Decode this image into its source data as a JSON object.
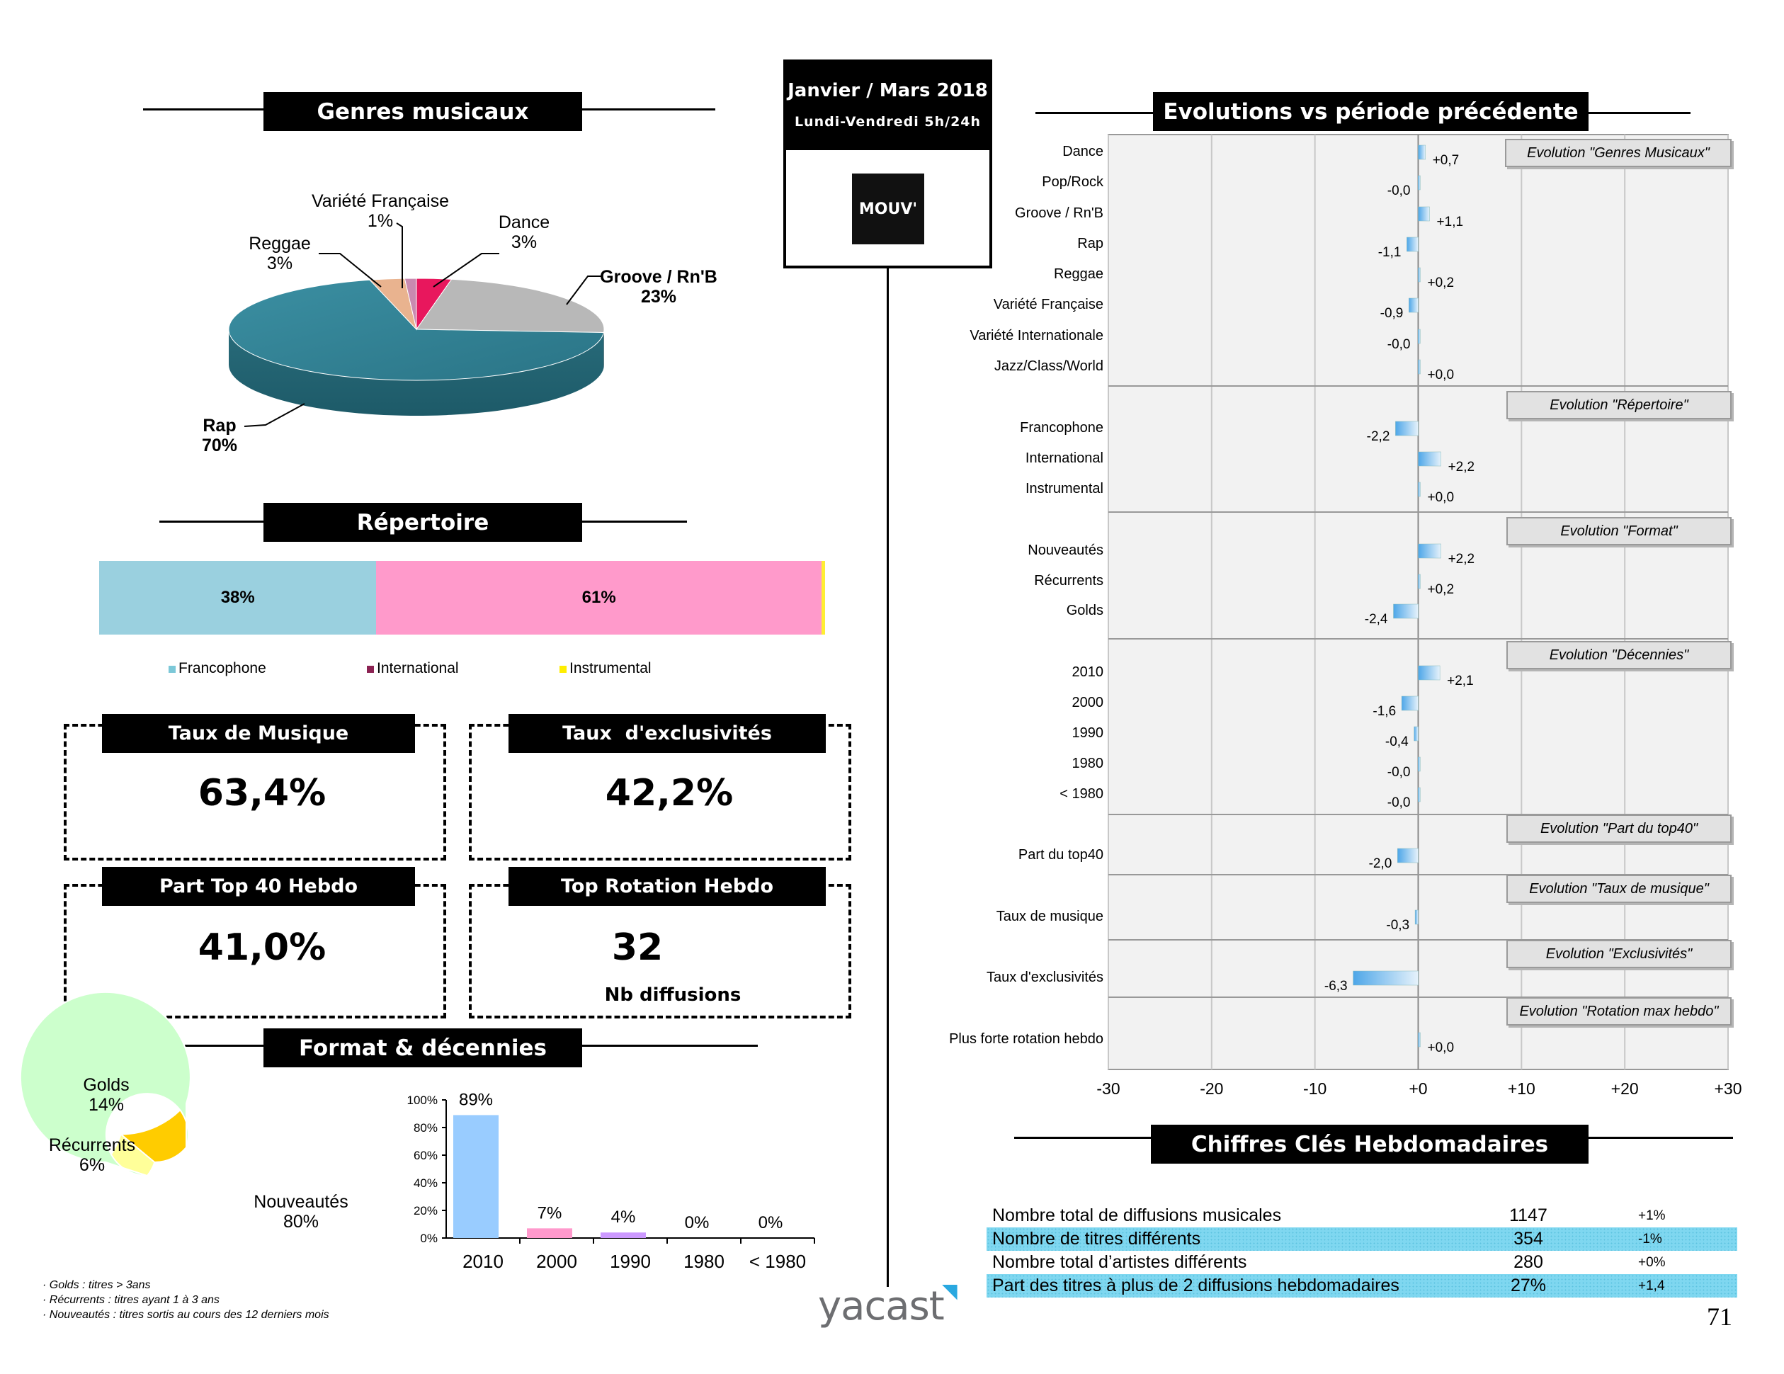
{
  "badge": {
    "period": "Janvier / Mars 2018",
    "schedule": "Lundi-Vendredi 5h/24h",
    "logo_text": "MOUV'"
  },
  "genres": {
    "title": "Genres musicaux",
    "labels": [
      {
        "name": "Variété Française",
        "pct": "1%"
      },
      {
        "name": "Reggae",
        "pct": "3%"
      },
      {
        "name": "Dance",
        "pct": "3%"
      },
      {
        "name": "Groove / Rn'B",
        "pct": "23%"
      },
      {
        "name": "Rap",
        "pct": "70%"
      }
    ]
  },
  "repertoire": {
    "title": "Répertoire",
    "bar_labels": [
      "38%",
      "61%"
    ],
    "legend": [
      "Francophone",
      "International",
      "Instrumental"
    ]
  },
  "kpis": [
    {
      "title": "Taux de Musique",
      "value": "63,4%"
    },
    {
      "title": "Taux  d'exclusivités",
      "value": "42,2%"
    },
    {
      "title": "Part Top 40 Hebdo",
      "value": "41,0%"
    },
    {
      "title": "Top Rotation Hebdo",
      "value": "32",
      "sub": "Nb diffusions"
    }
  ],
  "format": {
    "title": "Format & décennies",
    "donut_labels": [
      {
        "name": "Golds",
        "pct": "14%"
      },
      {
        "name": "Récurrents",
        "pct": "6%"
      },
      {
        "name": "Nouveautés",
        "pct": "80%"
      }
    ],
    "notes": [
      "· Golds : titres > 3ans",
      "· Récurrents : titres ayant  1 à 3 ans",
      "· Nouveautés  : titres sortis au cours des 12 derniers mois"
    ]
  },
  "evolutions": {
    "title": "Evolutions vs période précédente",
    "section_labels": [
      "Evolution \"Genres  Musicaux\"",
      "Evolution \"Répertoire\"",
      "Evolution \"Format\"",
      "Evolution \"Décennies\"",
      "Evolution \"Part du top40\"",
      "Evolution \"Taux  de musique\"",
      "Evolution \"Exclusivités\"",
      "Evolution \"Rotation max hebdo\""
    ]
  },
  "key_figures": {
    "title": "Chiffres Clés Hebdomadaires",
    "rows": [
      {
        "label": "Nombre total de diffusions musicales",
        "value": "1147",
        "change": "+1%"
      },
      {
        "label": "Nombre de titres différents",
        "value": "354",
        "change": "-1%"
      },
      {
        "label": "Nombre total d’artistes différents",
        "value": "280",
        "change": "+0%"
      },
      {
        "label": "Part des titres à plus de 2 diffusions hebdomadaires",
        "value": "27%",
        "change": "+1,4"
      }
    ]
  },
  "footer": {
    "brand": "yacast",
    "page_number": "71"
  },
  "chart_data": [
    {
      "type": "pie",
      "title": "Genres musicaux",
      "categories": [
        "Rap",
        "Groove / Rn'B",
        "Dance",
        "Variété Française",
        "Reggae"
      ],
      "values": [
        70,
        23,
        3,
        1,
        3
      ],
      "colors": [
        "#2e7c8e",
        "#b8b8b8",
        "#e8175d",
        "#c98ab0",
        "#e9b38f"
      ]
    },
    {
      "type": "bar",
      "title": "Répertoire",
      "orientation": "horizontal-stacked",
      "categories": [
        "Francophone",
        "International",
        "Instrumental"
      ],
      "values": [
        38,
        61,
        0.5
      ],
      "colors": [
        "#9ad0df",
        "#ff9acb",
        "#ffee33"
      ],
      "legend_colors": [
        "#7cc8d8",
        "#8b2252",
        "#ffee00"
      ]
    },
    {
      "type": "pie",
      "subtype": "donut",
      "title": "Format",
      "categories": [
        "Golds",
        "Récurrents",
        "Nouveautés"
      ],
      "values": [
        14,
        6,
        80
      ],
      "colors": [
        "#ffcc00",
        "#ffff99",
        "#ccffcc"
      ]
    },
    {
      "type": "bar",
      "title": "Décennies",
      "categories": [
        "2010",
        "2000",
        "1990",
        "1980",
        "< 1980"
      ],
      "values": [
        89,
        7,
        4,
        0,
        0
      ],
      "labels": [
        "89%",
        "7%",
        "4%",
        "0%",
        "0%"
      ],
      "colors": [
        "#99ccff",
        "#ff99cc",
        "#cc99ff",
        "#cccccc",
        "#cccccc"
      ],
      "ylim": [
        0,
        100
      ],
      "yticks": [
        "0%",
        "20%",
        "40%",
        "60%",
        "80%",
        "100%"
      ]
    },
    {
      "type": "bar",
      "orientation": "horizontal",
      "title": "Evolutions vs période précédente",
      "xlim": [
        -30,
        30
      ],
      "xticks": [
        "-30",
        "-20",
        "-10",
        "+0",
        "+10",
        "+20",
        "+30"
      ],
      "groups": [
        {
          "items": [
            {
              "category": "Dance",
              "value": 0.7,
              "label": "+0,7"
            },
            {
              "category": "Pop/Rock",
              "value": -0.01,
              "label": "-0,0"
            },
            {
              "category": "Groove / Rn'B",
              "value": 1.1,
              "label": "+1,1"
            },
            {
              "category": "Rap",
              "value": -1.1,
              "label": "-1,1"
            },
            {
              "category": "Reggae",
              "value": 0.2,
              "label": "+0,2"
            },
            {
              "category": "Variété Française",
              "value": -0.9,
              "label": "-0,9"
            },
            {
              "category": "Variété Internationale",
              "value": -0.01,
              "label": "-0,0"
            },
            {
              "category": "Jazz/Class/World",
              "value": 0.01,
              "label": "+0,0"
            }
          ]
        },
        {
          "items": [
            {
              "category": "Francophone",
              "value": -2.2,
              "label": "-2,2"
            },
            {
              "category": "International",
              "value": 2.2,
              "label": "+2,2"
            },
            {
              "category": "Instrumental",
              "value": 0.01,
              "label": "+0,0"
            }
          ]
        },
        {
          "items": [
            {
              "category": "Nouveautés",
              "value": 2.2,
              "label": "+2,2"
            },
            {
              "category": "Récurrents",
              "value": 0.2,
              "label": "+0,2"
            },
            {
              "category": "Golds",
              "value": -2.4,
              "label": "-2,4"
            }
          ]
        },
        {
          "items": [
            {
              "category": "2010",
              "value": 2.1,
              "label": "+2,1"
            },
            {
              "category": "2000",
              "value": -1.6,
              "label": "-1,6"
            },
            {
              "category": "1990",
              "value": -0.4,
              "label": "-0,4"
            },
            {
              "category": "1980",
              "value": -0.01,
              "label": "-0,0"
            },
            {
              "category": "< 1980",
              "value": -0.01,
              "label": "-0,0"
            }
          ]
        },
        {
          "items": [
            {
              "category": "Part du top40",
              "value": -2.0,
              "label": "-2,0"
            }
          ]
        },
        {
          "items": [
            {
              "category": "Taux de musique",
              "value": -0.3,
              "label": "-0,3"
            }
          ]
        },
        {
          "items": [
            {
              "category": "Taux d'exclusivités",
              "value": -6.3,
              "label": "-6,3"
            }
          ]
        },
        {
          "items": [
            {
              "category": "Plus forte rotation hebdo",
              "value": 0.01,
              "label": "+0,0"
            }
          ]
        }
      ]
    }
  ]
}
